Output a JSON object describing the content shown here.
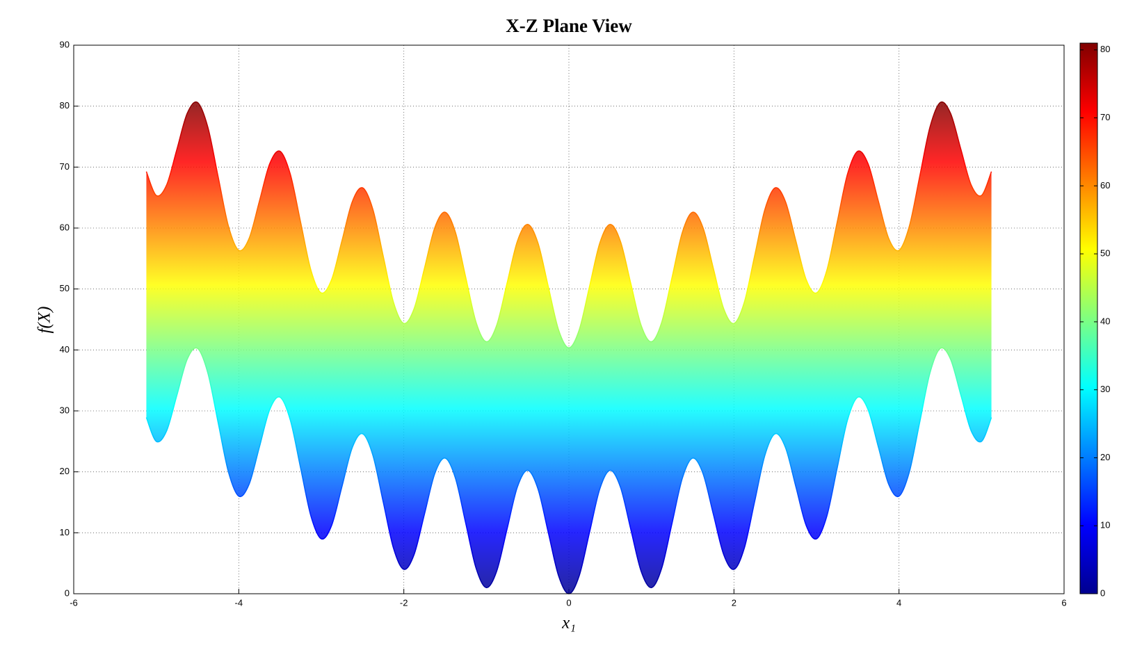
{
  "chart_data": {
    "type": "band",
    "title": "X-Z Plane View",
    "xlabel": "x₁",
    "ylabel": "f(X)",
    "x": [
      -5.12,
      -5,
      -4.875,
      -4.75,
      -4.625,
      -4.5,
      -4.375,
      -4.25,
      -4.125,
      -4,
      -3.875,
      -3.75,
      -3.625,
      -3.5,
      -3.375,
      -3.25,
      -3.125,
      -3,
      -2.875,
      -2.75,
      -2.625,
      -2.5,
      -2.375,
      -2.25,
      -2.125,
      -2,
      -1.875,
      -1.75,
      -1.625,
      -1.5,
      -1.375,
      -1.25,
      -1.125,
      -1,
      -0.875,
      -0.75,
      -0.625,
      -0.5,
      -0.375,
      -0.25,
      -0.125,
      0,
      0.125,
      0.25,
      0.375,
      0.5,
      0.625,
      0.75,
      0.875,
      1,
      1.125,
      1.25,
      1.375,
      1.5,
      1.625,
      1.75,
      1.875,
      2,
      2.125,
      2.25,
      2.375,
      2.5,
      2.625,
      2.75,
      2.875,
      3,
      3.125,
      3.25,
      3.375,
      3.5,
      3.625,
      3.75,
      3.875,
      4,
      4.125,
      4.25,
      4.375,
      4.5,
      4.625,
      4.75,
      4.875,
      5,
      5.12
    ],
    "lower": [
      28.92,
      25,
      26.7,
      32.56,
      38.46,
      40.25,
      36.21,
      28.06,
      19.95,
      16,
      17.95,
      24.06,
      30.21,
      32.25,
      28.46,
      20.56,
      12.7,
      9,
      11.2,
      17.56,
      23.96,
      26.25,
      22.71,
      15.06,
      7.45,
      4,
      6.45,
      13.06,
      19.71,
      22.25,
      18.96,
      11.56,
      4.2,
      1,
      3.7,
      10.56,
      17.46,
      20.25,
      17.21,
      10.06,
      2.94,
      0,
      2.94,
      10.06,
      17.21,
      20.25,
      17.46,
      10.56,
      3.7,
      1,
      4.2,
      11.56,
      18.96,
      22.25,
      19.71,
      13.06,
      6.45,
      4,
      7.45,
      15.06,
      22.71,
      26.25,
      23.96,
      17.56,
      11.2,
      9,
      12.7,
      20.56,
      28.46,
      32.25,
      30.21,
      24.06,
      17.95,
      16,
      19.95,
      28.06,
      36.21,
      40.25,
      38.46,
      32.56,
      26.7,
      25,
      28.92
    ],
    "upper": [
      69.27,
      65.35,
      67.05,
      72.91,
      78.81,
      80.6,
      76.56,
      68.41,
      60.3,
      56.35,
      58.3,
      64.41,
      70.56,
      72.6,
      68.81,
      60.91,
      53.05,
      49.35,
      51.55,
      57.91,
      64.31,
      66.6,
      63.06,
      55.41,
      47.8,
      44.35,
      46.8,
      53.41,
      60.06,
      62.6,
      59.31,
      51.91,
      44.55,
      41.35,
      44.05,
      50.91,
      57.81,
      60.6,
      57.56,
      50.41,
      43.29,
      40.35,
      43.29,
      50.41,
      57.56,
      60.6,
      57.81,
      50.91,
      44.05,
      41.35,
      44.55,
      51.91,
      59.31,
      62.6,
      60.06,
      53.41,
      46.8,
      44.35,
      47.8,
      55.41,
      63.06,
      66.6,
      64.31,
      57.91,
      51.55,
      49.35,
      53.05,
      60.91,
      68.81,
      72.6,
      70.56,
      64.41,
      58.3,
      56.35,
      60.3,
      68.41,
      76.56,
      80.6,
      78.81,
      72.91,
      67.05,
      65.35,
      69.27
    ],
    "xlim": [
      -6,
      6
    ],
    "xticks": [
      -6,
      -4,
      -2,
      0,
      2,
      4,
      6
    ],
    "ylim": [
      0,
      90
    ],
    "yticks": [
      0,
      10,
      20,
      30,
      40,
      50,
      60,
      70,
      80,
      90
    ],
    "grid": true,
    "colorbar": {
      "colormap": "jet",
      "clim": [
        0,
        81
      ],
      "ticks": [
        0,
        10,
        20,
        30,
        40,
        50,
        60,
        70,
        80
      ]
    }
  }
}
